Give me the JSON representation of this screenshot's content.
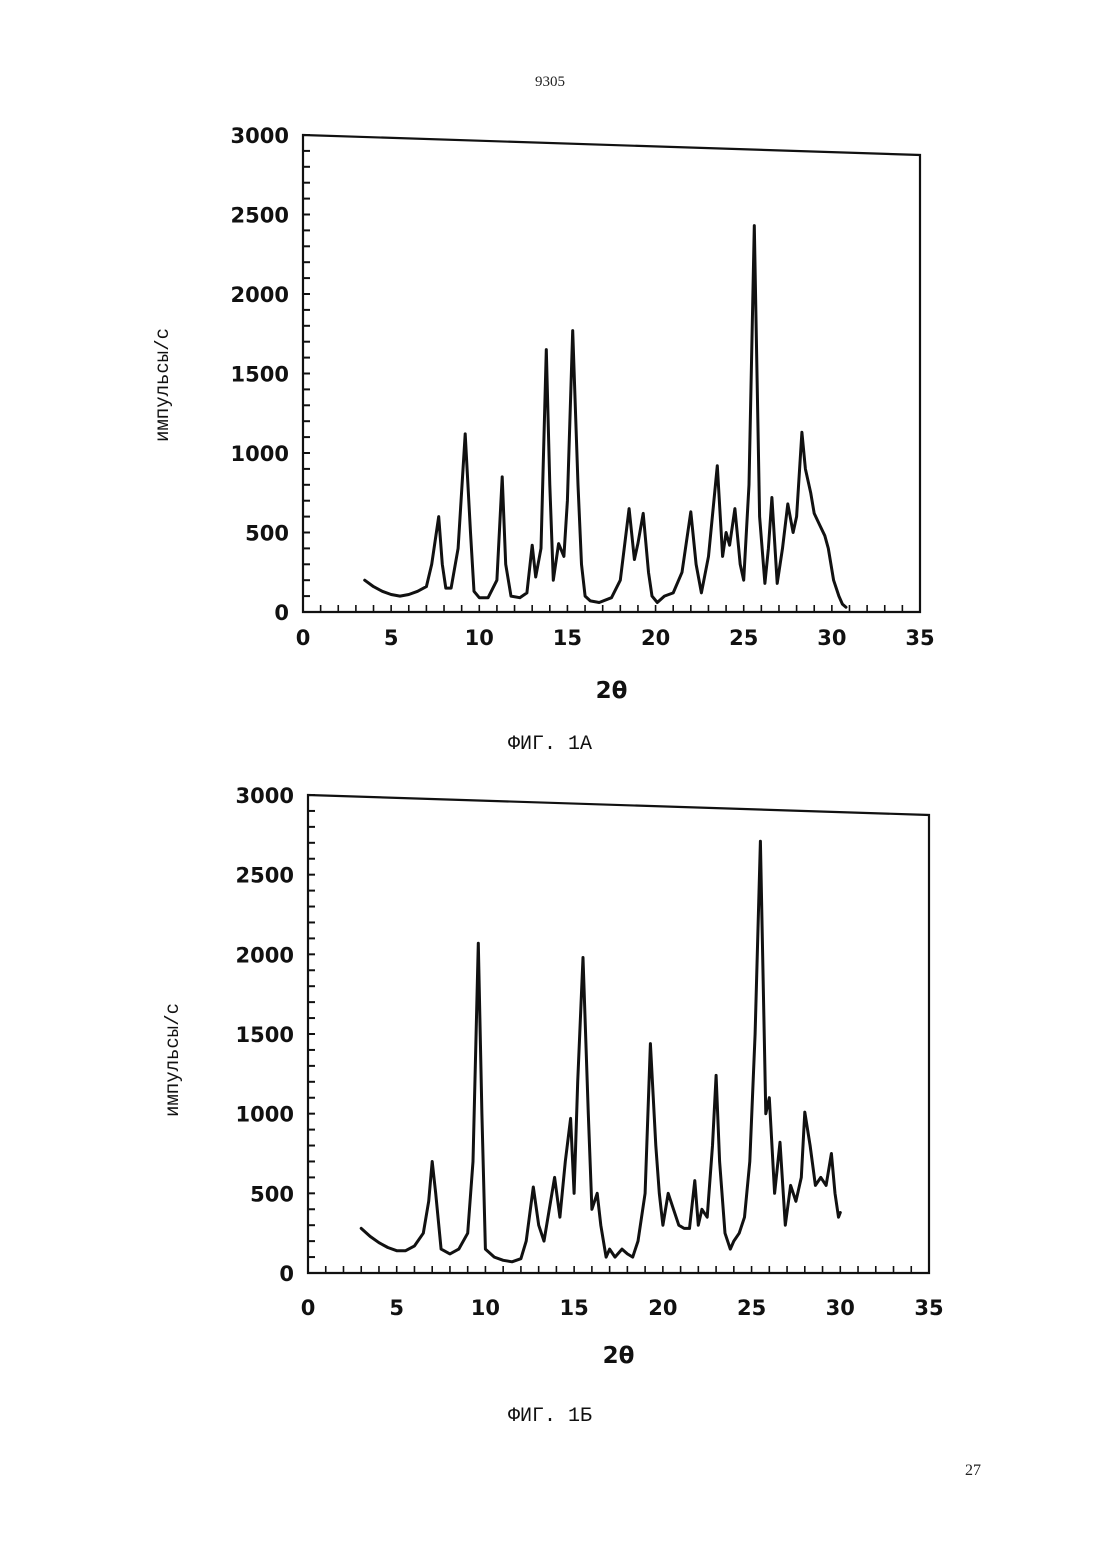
{
  "page": {
    "number_top": "9305",
    "number_bottom": "27"
  },
  "figures": [
    {
      "caption": "ФИГ. 1А"
    },
    {
      "caption": "ФИГ. 1Б"
    }
  ],
  "chart_data": [
    {
      "type": "line",
      "xlabel": "2θ",
      "ylabel": "импульсы/с",
      "xlim": [
        0,
        35
      ],
      "ylim": [
        0,
        3000
      ],
      "x_ticks": [
        0,
        5,
        10,
        15,
        20,
        25,
        30,
        35
      ],
      "y_ticks": [
        0,
        500,
        1000,
        1500,
        2000,
        2500,
        3000
      ],
      "x_tick_labels": [
        "0",
        "5",
        "10",
        "15",
        "20",
        "25",
        "30",
        "35"
      ],
      "y_tick_labels": [
        "0",
        "500",
        "1000",
        "1500",
        "2000",
        "2500",
        "3000"
      ],
      "series": [
        {
          "color": "#111111",
          "x": [
            3.5,
            4.0,
            4.5,
            5.0,
            5.5,
            6.0,
            6.5,
            7.0,
            7.3,
            7.7,
            7.9,
            8.1,
            8.4,
            8.8,
            9.2,
            9.5,
            9.7,
            10.0,
            10.5,
            11.0,
            11.3,
            11.5,
            11.8,
            12.3,
            12.7,
            13.0,
            13.2,
            13.5,
            13.8,
            14.0,
            14.2,
            14.5,
            14.8,
            15.0,
            15.3,
            15.6,
            15.8,
            16.0,
            16.3,
            16.8,
            17.5,
            18.0,
            18.5,
            18.8,
            19.0,
            19.3,
            19.6,
            19.8,
            20.1,
            20.5,
            21.0,
            21.5,
            22.0,
            22.3,
            22.6,
            23.0,
            23.5,
            23.8,
            24.0,
            24.2,
            24.5,
            24.8,
            25.0,
            25.3,
            25.6,
            25.9,
            26.2,
            26.4,
            26.6,
            26.9,
            27.2,
            27.5,
            27.8,
            28.0,
            28.3,
            28.5,
            28.8,
            29.0,
            29.3,
            29.6,
            29.8,
            30.1,
            30.4,
            30.6,
            30.8
          ],
          "y": [
            200,
            160,
            130,
            110,
            100,
            110,
            130,
            160,
            300,
            600,
            300,
            150,
            150,
            400,
            1120,
            500,
            130,
            90,
            90,
            200,
            850,
            300,
            100,
            90,
            120,
            420,
            220,
            400,
            1650,
            800,
            200,
            430,
            350,
            700,
            1770,
            800,
            300,
            100,
            70,
            60,
            90,
            200,
            650,
            330,
            430,
            620,
            250,
            100,
            60,
            100,
            120,
            250,
            630,
            300,
            120,
            350,
            920,
            350,
            500,
            420,
            650,
            300,
            200,
            800,
            2430,
            600,
            180,
            400,
            720,
            180,
            400,
            680,
            500,
            600,
            1130,
            900,
            750,
            620,
            550,
            480,
            400,
            200,
            100,
            50,
            30
          ]
        }
      ]
    },
    {
      "type": "line",
      "xlabel": "2θ",
      "ylabel": "импульсы/с",
      "xlim": [
        0,
        35
      ],
      "ylim": [
        0,
        3000
      ],
      "x_ticks": [
        0,
        5,
        10,
        15,
        20,
        25,
        30,
        35
      ],
      "y_ticks": [
        0,
        500,
        1000,
        1500,
        2000,
        2500,
        3000
      ],
      "x_tick_labels": [
        "0",
        "5",
        "10",
        "15",
        "20",
        "25",
        "30",
        "35"
      ],
      "y_tick_labels": [
        "0",
        "500",
        "1000",
        "1500",
        "2000",
        "2500",
        "3000"
      ],
      "series": [
        {
          "color": "#111111",
          "x": [
            3.0,
            3.5,
            4.0,
            4.5,
            5.0,
            5.5,
            6.0,
            6.5,
            6.8,
            7.0,
            7.2,
            7.5,
            8.0,
            8.5,
            9.0,
            9.3,
            9.6,
            9.8,
            10.0,
            10.5,
            11.0,
            11.5,
            12.0,
            12.3,
            12.7,
            13.0,
            13.3,
            13.6,
            13.9,
            14.2,
            14.5,
            14.8,
            15.0,
            15.2,
            15.5,
            15.8,
            16.0,
            16.3,
            16.5,
            16.8,
            17.0,
            17.3,
            17.7,
            18.0,
            18.3,
            18.6,
            19.0,
            19.3,
            19.6,
            19.8,
            20.0,
            20.3,
            20.6,
            20.9,
            21.2,
            21.5,
            21.8,
            22.0,
            22.2,
            22.5,
            22.8,
            23.0,
            23.2,
            23.5,
            23.8,
            24.0,
            24.3,
            24.6,
            24.9,
            25.2,
            25.5,
            25.8,
            26.0,
            26.3,
            26.6,
            26.9,
            27.2,
            27.5,
            27.8,
            28.0,
            28.3,
            28.6,
            28.9,
            29.2,
            29.5,
            29.7,
            29.9,
            30.0
          ],
          "y": [
            280,
            230,
            190,
            160,
            140,
            140,
            170,
            250,
            450,
            700,
            500,
            150,
            120,
            150,
            250,
            700,
            2070,
            1000,
            150,
            100,
            80,
            70,
            90,
            200,
            540,
            300,
            200,
            400,
            600,
            350,
            700,
            970,
            500,
            1200,
            1980,
            1000,
            400,
            500,
            300,
            100,
            150,
            100,
            150,
            120,
            100,
            200,
            500,
            1440,
            800,
            500,
            300,
            500,
            400,
            300,
            280,
            280,
            580,
            300,
            400,
            350,
            800,
            1240,
            700,
            250,
            150,
            200,
            250,
            350,
            700,
            1500,
            2710,
            1000,
            1100,
            500,
            820,
            300,
            550,
            450,
            600,
            1010,
            800,
            550,
            600,
            550,
            750,
            500,
            350,
            380
          ]
        }
      ]
    }
  ]
}
